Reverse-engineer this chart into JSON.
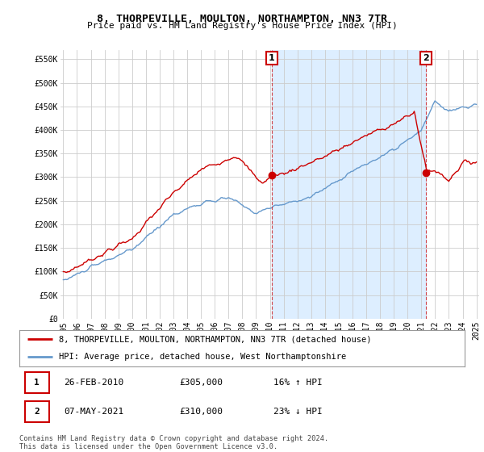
{
  "title": "8, THORPEVILLE, MOULTON, NORTHAMPTON, NN3 7TR",
  "subtitle": "Price paid vs. HM Land Registry's House Price Index (HPI)",
  "ylabel_ticks": [
    "£0",
    "£50K",
    "£100K",
    "£150K",
    "£200K",
    "£250K",
    "£300K",
    "£350K",
    "£400K",
    "£450K",
    "£500K",
    "£550K"
  ],
  "ytick_vals": [
    0,
    50000,
    100000,
    150000,
    200000,
    250000,
    300000,
    350000,
    400000,
    450000,
    500000,
    550000
  ],
  "ylim": [
    0,
    570000
  ],
  "xlim_left": 1994.8,
  "xlim_right": 2025.2,
  "legend_line1": "8, THORPEVILLE, MOULTON, NORTHAMPTON, NN3 7TR (detached house)",
  "legend_line2": "HPI: Average price, detached house, West Northamptonshire",
  "sale1_date": "26-FEB-2010",
  "sale1_price": "£305,000",
  "sale1_hpi": "16% ↑ HPI",
  "sale2_date": "07-MAY-2021",
  "sale2_price": "£310,000",
  "sale2_hpi": "23% ↓ HPI",
  "footer": "Contains HM Land Registry data © Crown copyright and database right 2024.\nThis data is licensed under the Open Government Licence v3.0.",
  "red_color": "#cc0000",
  "blue_color": "#6699cc",
  "shade_color": "#ddeeff",
  "background_color": "#ffffff",
  "grid_color": "#cccccc",
  "sale1_x": 2010.15,
  "sale2_x": 2021.35,
  "sale1_y": 305000,
  "sale2_y": 310000,
  "title_fontsize": 9.5,
  "subtitle_fontsize": 8,
  "tick_fontsize": 7,
  "legend_fontsize": 7.5,
  "table_fontsize": 8
}
